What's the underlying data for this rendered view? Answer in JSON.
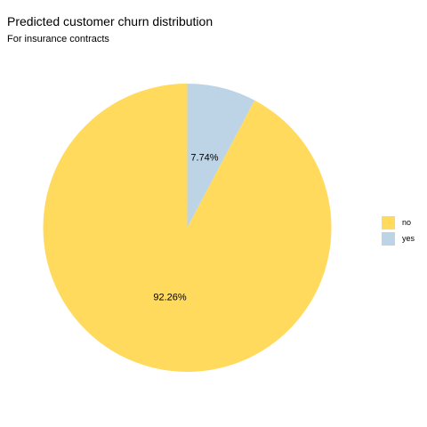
{
  "chart_data": {
    "type": "pie",
    "title": "Predicted customer churn distribution",
    "subtitle": "For insurance contracts",
    "categories": [
      "no",
      "yes"
    ],
    "values": [
      92.26,
      7.74
    ],
    "value_labels": [
      "92.26%",
      "7.74%"
    ],
    "colors": [
      "#FFDA5C",
      "#BDD4E6"
    ],
    "legend": {
      "placement": "right",
      "entries": [
        "no",
        "yes"
      ]
    },
    "start_angle": "12 o'clock",
    "direction": "clockwise, starting with the last category"
  }
}
